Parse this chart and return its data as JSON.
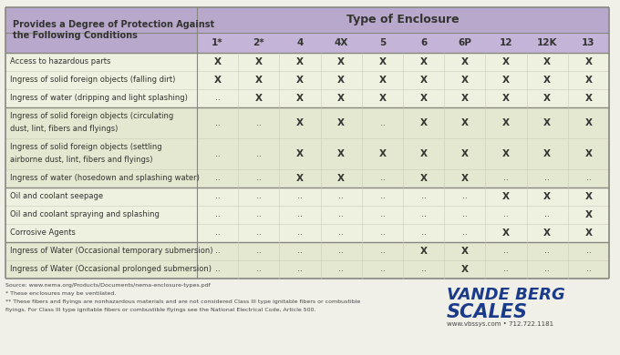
{
  "title": "Type of Enclosure",
  "header_left_line1": "Provides a Degree of Protection Against",
  "header_left_line2": "the Following Conditions",
  "col_headers": [
    "1*",
    "2*",
    "4",
    "4X",
    "5",
    "6",
    "6P",
    "12",
    "12K",
    "13"
  ],
  "rows": [
    {
      "label": "Access to hazardous parts",
      "values": [
        "X",
        "X",
        "X",
        "X",
        "X",
        "X",
        "X",
        "X",
        "X",
        "X"
      ],
      "group": 0
    },
    {
      "label": "Ingress of solid foreign objects (falling dirt)",
      "values": [
        "X",
        "X",
        "X",
        "X",
        "X",
        "X",
        "X",
        "X",
        "X",
        "X"
      ],
      "group": 0
    },
    {
      "label": "Ingress of water (dripping and light splashing)",
      "values": [
        "..",
        "X",
        "X",
        "X",
        "X",
        "X",
        "X",
        "X",
        "X",
        "X"
      ],
      "group": 0
    },
    {
      "label": "Ingress of solid foreign objects (circulating\ndust, lint, fibers and flyings)",
      "values": [
        "..",
        "..",
        "X",
        "X",
        "..",
        "X",
        "X",
        "X",
        "X",
        "X"
      ],
      "group": 1
    },
    {
      "label": "Ingress of solid foreign objects (settling\nairborne dust, lint, fibers and flyings)",
      "values": [
        "..",
        "..",
        "X",
        "X",
        "X",
        "X",
        "X",
        "X",
        "X",
        "X"
      ],
      "group": 1
    },
    {
      "label": "Ingress of water (hosedown and splashing water)",
      "values": [
        "..",
        "..",
        "X",
        "X",
        "..",
        "X",
        "X",
        "..",
        "..",
        ".."
      ],
      "group": 1
    },
    {
      "label": "Oil and coolant seepage",
      "values": [
        "..",
        "..",
        "..",
        "..",
        "..",
        "..",
        "..",
        "X",
        "X",
        "X"
      ],
      "group": 2
    },
    {
      "label": "Oil and coolant spraying and splashing",
      "values": [
        "..",
        "..",
        "..",
        "..",
        "..",
        "..",
        "..",
        "..",
        "..",
        "X"
      ],
      "group": 2
    },
    {
      "label": "Corrosive Agents",
      "values": [
        "..",
        "..",
        "..",
        "..",
        "..",
        "..",
        "..",
        "X",
        "X",
        "X"
      ],
      "group": 2
    },
    {
      "label": "Ingress of Water (Occasional temporary submersion)",
      "values": [
        "..",
        "..",
        "..",
        "..",
        "..",
        "X",
        "X",
        "..",
        "..",
        ".."
      ],
      "group": 3
    },
    {
      "label": "Ingress of Water (Occasional prolonged submersion)",
      "values": [
        "..",
        "..",
        "..",
        "..",
        "..",
        "..",
        "X",
        "..",
        "..",
        ".."
      ],
      "group": 3
    }
  ],
  "group_row_colors": [
    "#eef0e0",
    "#e4e8d0",
    "#eef0e0",
    "#e4e8d0"
  ],
  "header_bg": "#b8a8cc",
  "col_header_bg": "#c4b4d8",
  "border_dark": "#888880",
  "border_light": "#ccccbc",
  "text_dark": "#333330",
  "bg_color": "#f0f0e8",
  "source_text": "Source: www.nema.org/Products/Documents/nema-enclosure-types.pdf",
  "footnote1": "* These enclosures may be ventilated.",
  "footnote2": "** These fibers and flyings are nonhazardous materials and are not considered Class III type ignitable fibers or combustible",
  "footnote3": "flyings. For Class III type ignitable fibers or combustible flyings see the National Electrical Code, Article 500.",
  "logo_line1": "VANDE BERG",
  "logo_line2": "SCALES",
  "logo_sub": "www.vbssys.com • 712.722.1181",
  "logo_color": "#1a3a8a",
  "logo_sub_color": "#444444"
}
